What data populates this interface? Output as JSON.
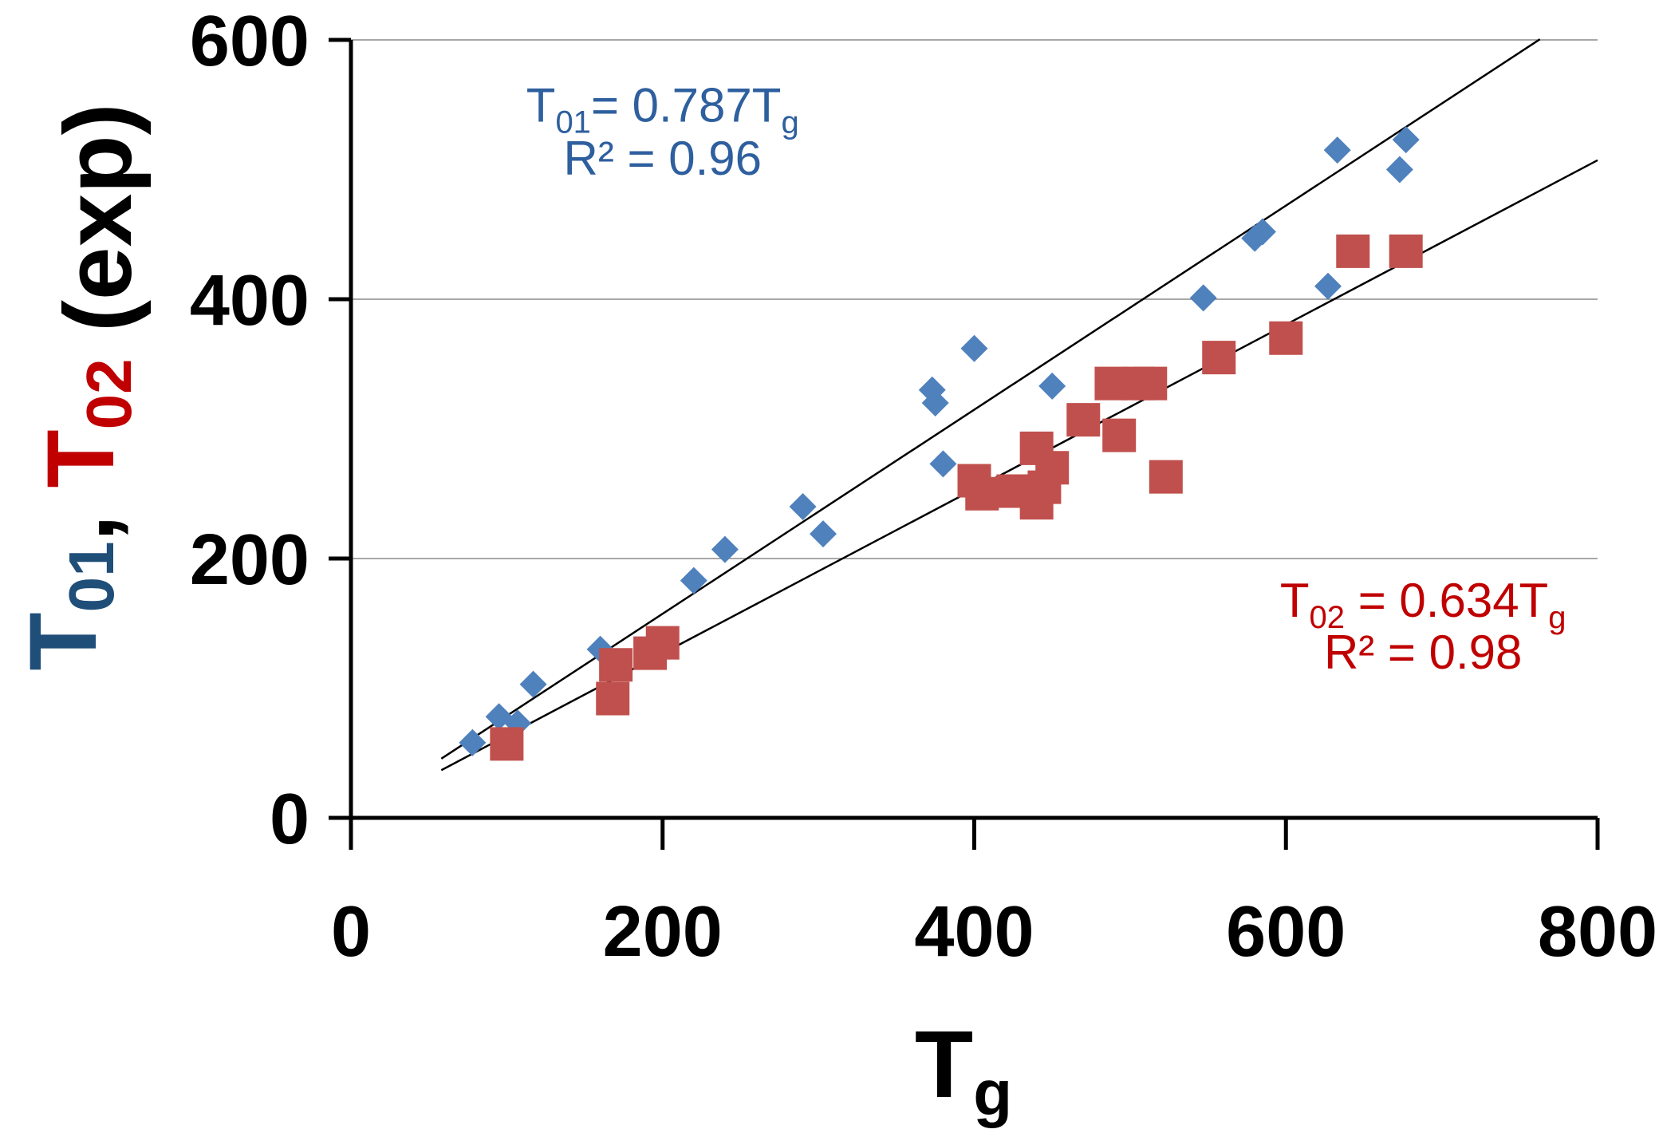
{
  "chart_data": {
    "type": "scatter",
    "title": "",
    "xlabel": {
      "main": "T",
      "sub": "g"
    },
    "ylabel": {
      "parts": [
        {
          "main": "T",
          "sub": "01",
          "color": "#1F4E79"
        },
        {
          "text": ", ",
          "color": "#000000"
        },
        {
          "main": "T",
          "sub": "02",
          "color": "#C00000"
        },
        {
          "text": " (exp)",
          "color": "#000000"
        }
      ]
    },
    "xlim": [
      0,
      800
    ],
    "ylim": [
      0,
      600
    ],
    "xticks": [
      0,
      200,
      400,
      600,
      800
    ],
    "yticks": [
      0,
      200,
      400,
      600
    ],
    "xtick_labels": [
      "0",
      "200",
      "400",
      "600",
      "800"
    ],
    "ytick_labels": [
      "0",
      "200",
      "400",
      "600"
    ],
    "grid": "horizontal",
    "series": [
      {
        "name": "T01",
        "marker": "diamond",
        "color": "#4F81BD",
        "points": [
          [
            78,
            58
          ],
          [
            95,
            78
          ],
          [
            107,
            73
          ],
          [
            117,
            103
          ],
          [
            160,
            130
          ],
          [
            220,
            183
          ],
          [
            240,
            207
          ],
          [
            290,
            240
          ],
          [
            303,
            219
          ],
          [
            373,
            330
          ],
          [
            375,
            320
          ],
          [
            380,
            273
          ],
          [
            400,
            362
          ],
          [
            450,
            333
          ],
          [
            547,
            401
          ],
          [
            580,
            447
          ],
          [
            585,
            452
          ],
          [
            627,
            410
          ],
          [
            633,
            515
          ],
          [
            673,
            500
          ],
          [
            677,
            523
          ]
        ]
      },
      {
        "name": "T02",
        "marker": "square",
        "color": "#C0504D",
        "points": [
          [
            100,
            57
          ],
          [
            168,
            92
          ],
          [
            170,
            118
          ],
          [
            192,
            127
          ],
          [
            200,
            135
          ],
          [
            400,
            260
          ],
          [
            405,
            250
          ],
          [
            425,
            252
          ],
          [
            440,
            243
          ],
          [
            440,
            285
          ],
          [
            445,
            255
          ],
          [
            450,
            270
          ],
          [
            470,
            307
          ],
          [
            488,
            335
          ],
          [
            493,
            295
          ],
          [
            505,
            335
          ],
          [
            513,
            335
          ],
          [
            523,
            263
          ],
          [
            557,
            355
          ],
          [
            600,
            370
          ],
          [
            643,
            437
          ],
          [
            677,
            437
          ]
        ]
      }
    ],
    "fits": [
      {
        "name": "T01 fit",
        "slope": 0.787,
        "x_range": [
          58,
          763
        ],
        "color": "#000000"
      },
      {
        "name": "T02 fit",
        "slope": 0.634,
        "x_range": [
          58,
          800
        ],
        "color": "#000000"
      }
    ],
    "annotations": [
      {
        "id": "t01",
        "color": "#2E5F9E",
        "line1": {
          "main": "T",
          "sub": "01",
          "rest": "= 0.787T",
          "sub2": "g"
        },
        "line2": "R² = 0.96",
        "anchor_x": 200,
        "line1_y": 537,
        "line2_y": 496
      },
      {
        "id": "t02",
        "color": "#C00000",
        "line1": {
          "main": "T",
          "sub": "02",
          "rest": " = 0.634T",
          "sub2": "g"
        },
        "line2": "R² = 0.98",
        "anchor_x": 688,
        "line1_y": 155,
        "line2_y": 115
      }
    ]
  }
}
